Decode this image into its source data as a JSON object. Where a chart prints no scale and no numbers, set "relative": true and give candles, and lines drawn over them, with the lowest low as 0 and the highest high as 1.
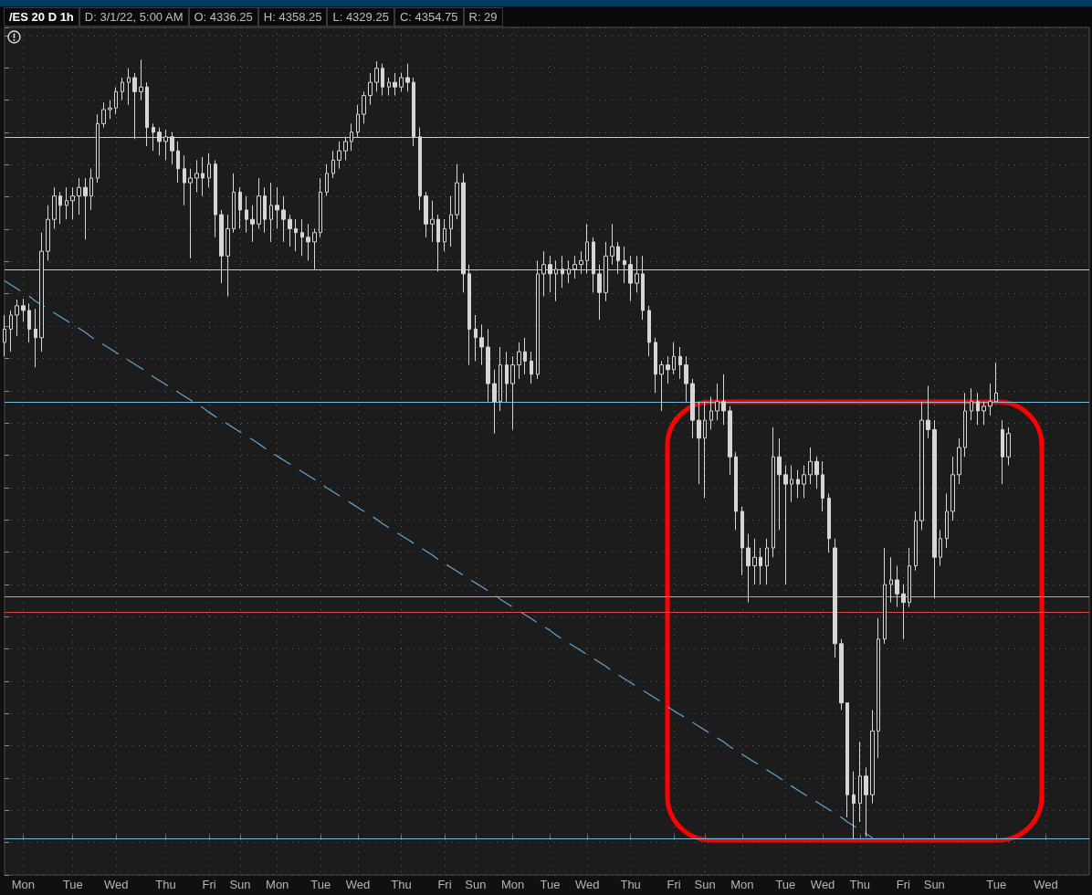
{
  "chart_data": {
    "type": "candlestick",
    "title": "/ES 20 D 1h",
    "annotations": [
      "D: 3/1/22, 5:00 AM",
      "O: 4336.25",
      "H: 4358.25",
      "L: 4329.25",
      "C: 4354.75",
      "R: 29"
    ],
    "relative": true,
    "tick_labels": "x",
    "grid": true,
    "categories": [
      null,
      null,
      null,
      "Mon",
      null,
      null,
      null,
      null,
      null,
      null,
      null,
      "Tue",
      null,
      null,
      null,
      null,
      null,
      null,
      "Wed",
      null,
      null,
      null,
      null,
      null,
      null,
      null,
      "Thu",
      null,
      null,
      null,
      null,
      null,
      null,
      "Fri",
      null,
      null,
      null,
      null,
      "Sun",
      null,
      null,
      null,
      null,
      null,
      "Mon",
      null,
      null,
      null,
      null,
      null,
      null,
      "Tue",
      null,
      null,
      null,
      null,
      null,
      "Wed",
      null,
      null,
      null,
      null,
      null,
      null,
      "Thu",
      null,
      null,
      null,
      null,
      null,
      null,
      "Fri",
      null,
      null,
      null,
      null,
      "Sun",
      null,
      null,
      null,
      null,
      null,
      "Mon",
      null,
      null,
      null,
      null,
      null,
      "Tue",
      null,
      null,
      null,
      null,
      null,
      "Wed",
      null,
      null,
      null,
      null,
      null,
      null,
      "Thu",
      null,
      null,
      null,
      null,
      null,
      null,
      "Fri",
      null,
      null,
      null,
      null,
      "Sun",
      null,
      null,
      null,
      null,
      null,
      "Mon",
      null,
      null,
      null,
      null,
      null,
      null,
      "Tue",
      null,
      null,
      null,
      null,
      null,
      "Wed",
      null,
      null,
      null,
      null,
      null,
      "Thu",
      null,
      null,
      null,
      null,
      null,
      null,
      "Fri",
      null,
      null,
      null,
      null,
      "Sun",
      null,
      null,
      null,
      null,
      null,
      null,
      null,
      null,
      null,
      "Tue",
      null,
      null,
      null,
      null,
      null,
      null,
      null,
      "Wed",
      null,
      null,
      null,
      null,
      null,
      null,
      null
    ],
    "ref_lines": [
      {
        "axis": "y",
        "value": 0.902,
        "color": "#c8c8c8"
      },
      {
        "axis": "y",
        "value": 0.728,
        "color": "#c8c8c8"
      },
      {
        "axis": "y",
        "value": 0.56,
        "color": "#7ab8e0"
      },
      {
        "axis": "y",
        "value": 0.309,
        "color": "#7ab8e0"
      },
      {
        "axis": "y",
        "value": 0.292,
        "color": "#e04848"
      },
      {
        "axis": "y",
        "value": 0,
        "color": "#7ab8e0"
      }
    ],
    "series": [
      {
        "color": "#d6d6d6",
        "ohlc": [
          [
            0.637,
            0.672,
            0.619,
            0.654
          ],
          [
            0.654,
            0.678,
            0.625,
            0.672
          ],
          [
            0.672,
            0.692,
            0.645,
            0.684
          ],
          [
            0.684,
            0.693,
            0.664,
            0.678
          ],
          [
            0.678,
            0.687,
            0.637,
            0.654
          ],
          [
            0.654,
            0.68,
            0.605,
            0.643
          ],
          [
            0.643,
            0.778,
            0.625,
            0.754
          ],
          [
            0.754,
            0.813,
            0.742,
            0.795
          ],
          [
            0.795,
            0.836,
            0.783,
            0.825
          ],
          [
            0.825,
            0.83,
            0.789,
            0.813
          ],
          [
            0.813,
            0.836,
            0.795,
            0.819
          ],
          [
            0.819,
            0.836,
            0.795,
            0.825
          ],
          [
            0.825,
            0.848,
            0.801,
            0.836
          ],
          [
            0.836,
            0.848,
            0.769,
            0.825
          ],
          [
            0.825,
            0.86,
            0.807,
            0.848
          ],
          [
            0.848,
            0.93,
            0.842,
            0.918
          ],
          [
            0.918,
            0.945,
            0.913,
            0.936
          ],
          [
            0.936,
            0.948,
            0.924,
            0.938
          ],
          [
            0.938,
            0.965,
            0.93,
            0.959
          ],
          [
            0.959,
            0.977,
            0.948,
            0.971
          ],
          [
            0.971,
            0.989,
            0.942,
            0.977
          ],
          [
            0.977,
            0.983,
            0.898,
            0.959
          ],
          [
            0.959,
            1,
            0.948,
            0.965
          ],
          [
            0.965,
            0.971,
            0.889,
            0.913
          ],
          [
            0.913,
            0.918,
            0.883,
            0.907
          ],
          [
            0.907,
            0.913,
            0.877,
            0.895
          ],
          [
            0.895,
            0.91,
            0.871,
            0.901
          ],
          [
            0.901,
            0.907,
            0.866,
            0.883
          ],
          [
            0.883,
            0.895,
            0.842,
            0.86
          ],
          [
            0.86,
            0.877,
            0.813,
            0.842
          ],
          [
            0.842,
            0.86,
            0.745,
            0.848
          ],
          [
            0.848,
            0.871,
            0.83,
            0.854
          ],
          [
            0.854,
            0.875,
            0.825,
            0.848
          ],
          [
            0.848,
            0.88,
            0.836,
            0.866
          ],
          [
            0.866,
            0.871,
            0.772,
            0.801
          ],
          [
            0.801,
            0.807,
            0.713,
            0.748
          ],
          [
            0.748,
            0.801,
            0.696,
            0.783
          ],
          [
            0.783,
            0.854,
            0.778,
            0.83
          ],
          [
            0.83,
            0.836,
            0.783,
            0.807
          ],
          [
            0.807,
            0.825,
            0.778,
            0.795
          ],
          [
            0.795,
            0.813,
            0.766,
            0.789
          ],
          [
            0.789,
            0.848,
            0.783,
            0.825
          ],
          [
            0.825,
            0.836,
            0.778,
            0.795
          ],
          [
            0.795,
            0.842,
            0.766,
            0.813
          ],
          [
            0.813,
            0.836,
            0.783,
            0.807
          ],
          [
            0.807,
            0.825,
            0.766,
            0.795
          ],
          [
            0.795,
            0.801,
            0.76,
            0.783
          ],
          [
            0.783,
            0.795,
            0.754,
            0.778
          ],
          [
            0.778,
            0.795,
            0.748,
            0.772
          ],
          [
            0.772,
            0.789,
            0.742,
            0.766
          ],
          [
            0.766,
            0.783,
            0.731,
            0.778
          ],
          [
            0.778,
            0.848,
            0.772,
            0.83
          ],
          [
            0.83,
            0.866,
            0.825,
            0.854
          ],
          [
            0.854,
            0.883,
            0.848,
            0.871
          ],
          [
            0.871,
            0.895,
            0.86,
            0.883
          ],
          [
            0.883,
            0.901,
            0.871,
            0.895
          ],
          [
            0.895,
            0.918,
            0.883,
            0.907
          ],
          [
            0.907,
            0.942,
            0.901,
            0.93
          ],
          [
            0.93,
            0.959,
            0.918,
            0.954
          ],
          [
            0.954,
            0.983,
            0.942,
            0.971
          ],
          [
            0.971,
            0.998,
            0.959,
            0.989
          ],
          [
            0.989,
            0.995,
            0.954,
            0.965
          ],
          [
            0.965,
            0.977,
            0.954,
            0.971
          ],
          [
            0.971,
            0.983,
            0.954,
            0.965
          ],
          [
            0.965,
            0.983,
            0.959,
            0.977
          ],
          [
            0.977,
            0.995,
            0.959,
            0.971
          ],
          [
            0.971,
            0.977,
            0.889,
            0.901
          ],
          [
            0.901,
            0.913,
            0.807,
            0.825
          ],
          [
            0.825,
            0.83,
            0.772,
            0.789
          ],
          [
            0.789,
            0.819,
            0.766,
            0.795
          ],
          [
            0.795,
            0.801,
            0.728,
            0.766
          ],
          [
            0.766,
            0.795,
            0.754,
            0.783
          ],
          [
            0.783,
            0.825,
            0.76,
            0.801
          ],
          [
            0.801,
            0.866,
            0.795,
            0.842
          ],
          [
            0.842,
            0.854,
            0.701,
            0.725
          ],
          [
            0.725,
            0.737,
            0.608,
            0.654
          ],
          [
            0.654,
            0.672,
            0.613,
            0.643
          ],
          [
            0.643,
            0.66,
            0.608,
            0.631
          ],
          [
            0.631,
            0.654,
            0.561,
            0.584
          ],
          [
            0.584,
            0.602,
            0.52,
            0.561
          ],
          [
            0.561,
            0.631,
            0.549,
            0.608
          ],
          [
            0.608,
            0.625,
            0.561,
            0.584
          ],
          [
            0.584,
            0.619,
            0.525,
            0.608
          ],
          [
            0.608,
            0.637,
            0.59,
            0.625
          ],
          [
            0.625,
            0.643,
            0.596,
            0.613
          ],
          [
            0.613,
            0.625,
            0.584,
            0.596
          ],
          [
            0.596,
            0.742,
            0.59,
            0.725
          ],
          [
            0.725,
            0.754,
            0.696,
            0.737
          ],
          [
            0.737,
            0.748,
            0.701,
            0.725
          ],
          [
            0.725,
            0.742,
            0.69,
            0.731
          ],
          [
            0.731,
            0.748,
            0.707,
            0.725
          ],
          [
            0.725,
            0.742,
            0.713,
            0.731
          ],
          [
            0.731,
            0.748,
            0.719,
            0.737
          ],
          [
            0.737,
            0.754,
            0.725,
            0.742
          ],
          [
            0.742,
            0.789,
            0.725,
            0.766
          ],
          [
            0.766,
            0.772,
            0.701,
            0.725
          ],
          [
            0.725,
            0.737,
            0.666,
            0.701
          ],
          [
            0.701,
            0.766,
            0.69,
            0.748
          ],
          [
            0.748,
            0.789,
            0.737,
            0.76
          ],
          [
            0.76,
            0.766,
            0.725,
            0.742
          ],
          [
            0.742,
            0.76,
            0.713,
            0.737
          ],
          [
            0.737,
            0.748,
            0.69,
            0.713
          ],
          [
            0.713,
            0.748,
            0.701,
            0.725
          ],
          [
            0.725,
            0.748,
            0.666,
            0.678
          ],
          [
            0.678,
            0.684,
            0.619,
            0.637
          ],
          [
            0.637,
            0.643,
            0.572,
            0.596
          ],
          [
            0.596,
            0.613,
            0.549,
            0.608
          ],
          [
            0.608,
            0.619,
            0.584,
            0.602
          ],
          [
            0.602,
            0.637,
            0.596,
            0.619
          ],
          [
            0.619,
            0.631,
            0.59,
            0.608
          ],
          [
            0.608,
            0.619,
            0.561,
            0.584
          ],
          [
            0.584,
            0.59,
            0.514,
            0.537
          ],
          [
            0.537,
            0.561,
            0.455,
            0.514
          ],
          [
            0.514,
            0.561,
            0.437,
            0.537
          ],
          [
            0.537,
            0.567,
            0.525,
            0.549
          ],
          [
            0.549,
            0.584,
            0.537,
            0.561
          ],
          [
            0.561,
            0.596,
            0.531,
            0.549
          ],
          [
            0.549,
            0.555,
            0.467,
            0.49
          ],
          [
            0.49,
            0.496,
            0.396,
            0.42
          ],
          [
            0.42,
            0.426,
            0.338,
            0.373
          ],
          [
            0.373,
            0.391,
            0.303,
            0.35
          ],
          [
            0.35,
            0.385,
            0.326,
            0.361
          ],
          [
            0.361,
            0.373,
            0.326,
            0.35
          ],
          [
            0.35,
            0.385,
            0.326,
            0.373
          ],
          [
            0.373,
            0.528,
            0.361,
            0.49
          ],
          [
            0.49,
            0.514,
            0.396,
            0.467
          ],
          [
            0.467,
            0.479,
            0.326,
            0.455
          ],
          [
            0.455,
            0.479,
            0.432,
            0.461
          ],
          [
            0.461,
            0.473,
            0.437,
            0.455
          ],
          [
            0.455,
            0.479,
            0.437,
            0.467
          ],
          [
            0.467,
            0.502,
            0.455,
            0.484
          ],
          [
            0.484,
            0.49,
            0.449,
            0.467
          ],
          [
            0.467,
            0.484,
            0.42,
            0.437
          ],
          [
            0.437,
            0.443,
            0.367,
            0.385
          ],
          [
            0.373,
            0.385,
            0.232,
            0.25
          ],
          [
            0.25,
            0.256,
            0.165,
            0.174
          ],
          [
            0.174,
            0.174,
            0.027,
            0.056
          ],
          [
            0.056,
            0.086,
            0,
            0.045
          ],
          [
            0.045,
            0.124,
            0.021,
            0.08
          ],
          [
            0.08,
            0.091,
            0.002,
            0.056
          ],
          [
            0.056,
            0.165,
            0.045,
            0.138
          ],
          [
            0.138,
            0.283,
            0.103,
            0.256
          ],
          [
            0.256,
            0.373,
            0.25,
            0.326
          ],
          [
            0.326,
            0.361,
            0.303,
            0.332
          ],
          [
            0.332,
            0.35,
            0.297,
            0.314
          ],
          [
            0.314,
            0.326,
            0.256,
            0.303
          ],
          [
            0.303,
            0.373,
            0.297,
            0.35
          ],
          [
            0.35,
            0.42,
            0.344,
            0.408
          ],
          [
            0.408,
            0.561,
            0.396,
            0.537
          ],
          [
            0.537,
            0.581,
            0.514,
            0.525
          ],
          [
            0.525,
            0.537,
            0.308,
            0.361
          ],
          [
            0.361,
            0.396,
            0.35,
            0.385
          ],
          [
            0.385,
            0.443,
            0.373,
            0.42
          ],
          [
            0.42,
            0.49,
            0.408,
            0.467
          ],
          [
            0.467,
            0.514,
            0.455,
            0.502
          ],
          [
            0.502,
            0.572,
            0.49,
            0.549
          ],
          [
            0.549,
            0.578,
            0.537,
            0.561
          ],
          [
            0.561,
            0.572,
            0.531,
            0.549
          ],
          [
            0.549,
            0.561,
            0.531,
            0.555
          ],
          [
            0.555,
            0.584,
            0.543,
            0.561
          ],
          [
            0.561,
            0.611,
            0.561,
            0.572
          ],
          [
            0.525,
            0.537,
            0.455,
            0.49
          ],
          [
            0.49,
            0.528,
            0.479,
            0.52
          ],
          null,
          null,
          null,
          null,
          null,
          null,
          null,
          null,
          null,
          null,
          null,
          null,
          null
        ]
      },
      {
        "type": "line",
        "color": "#5fa8d8",
        "line_style": "dashed",
        "values": [
          0.716,
          0.711,
          0.706,
          0.701,
          0.696,
          0.69,
          0.685,
          0.68,
          0.675,
          0.67,
          0.665,
          0.66,
          0.655,
          0.65,
          0.644,
          0.639,
          0.634,
          0.629,
          0.624,
          0.619,
          0.614,
          0.609,
          0.604,
          0.599,
          0.593,
          0.588,
          0.583,
          0.578,
          0.573,
          0.568,
          0.563,
          0.558,
          0.553,
          0.547,
          0.542,
          0.537,
          0.532,
          0.527,
          0.522,
          0.517,
          0.512,
          0.507,
          0.501,
          0.496,
          0.491,
          0.486,
          0.481,
          0.476,
          0.471,
          0.466,
          0.461,
          0.456,
          0.45,
          0.445,
          0.44,
          0.435,
          0.43,
          0.425,
          0.42,
          0.415,
          0.41,
          0.404,
          0.399,
          0.394,
          0.389,
          0.384,
          0.379,
          0.374,
          0.369,
          0.364,
          0.358,
          0.353,
          0.348,
          0.343,
          0.338,
          0.333,
          0.328,
          0.323,
          0.318,
          0.313,
          0.307,
          0.302,
          0.297,
          0.292,
          0.287,
          0.282,
          0.277,
          0.272,
          0.267,
          0.261,
          0.256,
          0.251,
          0.246,
          0.241,
          0.236,
          0.231,
          0.226,
          0.221,
          0.215,
          0.21,
          0.205,
          0.2,
          0.195,
          0.19,
          0.185,
          0.18,
          0.175,
          0.169,
          0.164,
          0.159,
          0.154,
          0.149,
          0.144,
          0.139,
          0.134,
          0.129,
          0.124,
          0.118,
          0.113,
          0.108,
          0.103,
          0.098,
          0.093,
          0.088,
          0.083,
          0.078,
          0.072,
          0.067,
          0.062,
          0.057,
          0.052,
          0.047,
          0.042,
          0.037,
          0.032,
          0.027,
          0.021,
          0.016,
          0.011,
          0.006,
          0.001,
          null,
          null,
          null,
          null,
          null,
          null,
          null,
          null,
          null,
          null,
          null,
          null,
          null,
          null,
          null,
          null,
          null,
          null,
          null,
          null,
          null,
          null,
          null,
          null,
          null,
          null,
          null,
          null,
          null,
          null,
          null,
          null,
          null,
          null,
          null
        ]
      }
    ]
  }
}
